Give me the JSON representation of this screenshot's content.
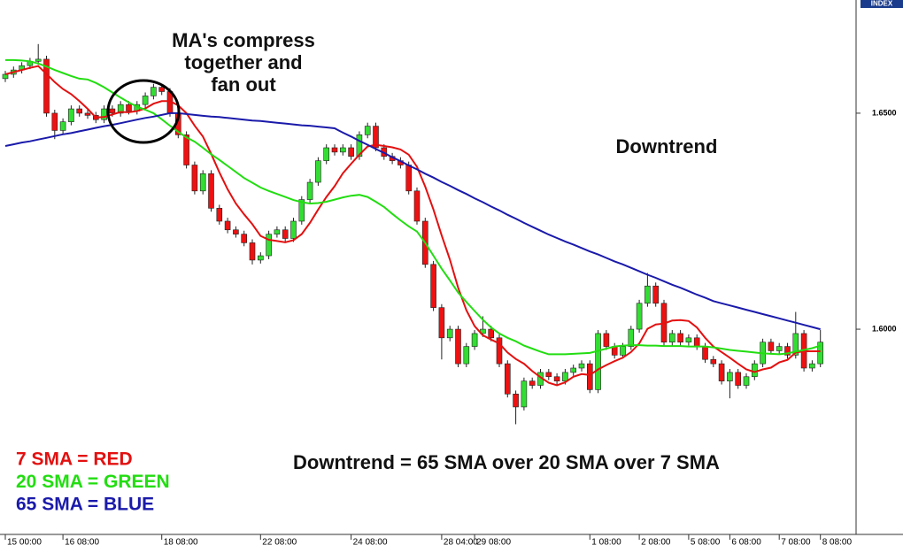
{
  "chart_data": {
    "type": "candlestick",
    "axis_badge": "INDEX",
    "annotations": [
      [
        "MA's compress",
        "together and",
        "fan out"
      ],
      "Downtrend",
      "Downtrend = 65 SMA over 20 SMA over 7 SMA"
    ],
    "categories": [
      "15 00:00",
      null,
      null,
      null,
      null,
      null,
      null,
      "16 08:00",
      null,
      null,
      null,
      null,
      null,
      null,
      null,
      null,
      null,
      null,
      null,
      "18 08:00",
      null,
      null,
      null,
      null,
      null,
      null,
      null,
      null,
      null,
      null,
      null,
      "22 08:00",
      null,
      null,
      null,
      null,
      null,
      null,
      null,
      null,
      null,
      null,
      "24 08:00",
      null,
      null,
      null,
      null,
      null,
      null,
      null,
      null,
      null,
      null,
      "28 04:00",
      null,
      null,
      null,
      "29 08:00",
      null,
      null,
      null,
      null,
      null,
      null,
      null,
      null,
      null,
      null,
      null,
      null,
      null,
      "1 08:00",
      null,
      null,
      null,
      null,
      null,
      "2 08:00",
      null,
      null,
      null,
      null,
      null,
      "5 08:00",
      null,
      null,
      null,
      null,
      "6 08:00",
      null,
      null,
      null,
      null,
      null,
      "7 08:00",
      null,
      null,
      null,
      null,
      "8 08:00"
    ],
    "open": [
      1.658,
      1.659,
      1.66,
      1.661,
      1.662,
      1.6625,
      1.65,
      1.646,
      1.648,
      1.651,
      1.65,
      1.6495,
      1.6485,
      1.651,
      1.65,
      1.652,
      1.6505,
      1.652,
      1.654,
      1.656,
      1.655,
      1.65,
      1.645,
      1.638,
      1.632,
      1.636,
      1.628,
      1.625,
      1.623,
      1.622,
      1.62,
      1.616,
      1.617,
      1.622,
      1.623,
      1.621,
      1.625,
      1.63,
      1.634,
      1.639,
      1.642,
      1.641,
      1.642,
      1.64,
      1.645,
      1.647,
      1.642,
      1.64,
      1.639,
      1.638,
      1.632,
      1.625,
      1.615,
      1.605,
      1.598,
      1.6,
      1.592,
      1.596,
      1.599,
      1.6,
      1.598,
      1.592,
      1.585,
      1.582,
      1.588,
      1.587,
      1.59,
      1.589,
      1.588,
      1.59,
      1.591,
      1.592,
      1.586,
      1.599,
      1.596,
      1.594,
      1.596,
      1.6,
      1.606,
      1.61,
      1.606,
      1.597,
      1.599,
      1.597,
      1.598,
      1.596,
      1.593,
      1.592,
      1.588,
      1.59,
      1.587,
      1.589,
      1.592,
      1.597,
      1.595,
      1.596,
      1.594,
      1.599,
      1.591,
      1.592
    ],
    "high": [
      1.6598,
      1.6608,
      1.6618,
      1.6628,
      1.666,
      1.6633,
      1.6508,
      1.6488,
      1.6518,
      1.6518,
      1.6508,
      1.6503,
      1.6518,
      1.6518,
      1.6528,
      1.6528,
      1.6528,
      1.6548,
      1.6568,
      1.6568,
      1.6558,
      1.6508,
      1.6458,
      1.6388,
      1.6368,
      1.6368,
      1.6288,
      1.6258,
      1.6238,
      1.6228,
      1.6208,
      1.6178,
      1.6228,
      1.6238,
      1.6238,
      1.6258,
      1.6308,
      1.6348,
      1.6398,
      1.6428,
      1.6428,
      1.6428,
      1.6428,
      1.6458,
      1.6478,
      1.6478,
      1.6428,
      1.6408,
      1.6398,
      1.6388,
      1.6328,
      1.6258,
      1.6158,
      1.6058,
      1.6008,
      1.6008,
      1.5968,
      1.5998,
      1.603,
      1.6008,
      1.5988,
      1.5928,
      1.5858,
      1.5888,
      1.5888,
      1.5908,
      1.5908,
      1.5898,
      1.5908,
      1.5918,
      1.5928,
      1.5928,
      1.5998,
      1.5998,
      1.5968,
      1.5968,
      1.6008,
      1.6068,
      1.613,
      1.6108,
      1.6068,
      1.5998,
      1.5998,
      1.5988,
      1.5988,
      1.5968,
      1.5938,
      1.5928,
      1.5908,
      1.5908,
      1.5898,
      1.5928,
      1.5978,
      1.5978,
      1.5968,
      1.5968,
      1.604,
      1.5998,
      1.5928,
      1.5998
    ],
    "low": [
      1.6572,
      1.6582,
      1.6592,
      1.6602,
      1.6612,
      1.6492,
      1.644,
      1.6452,
      1.6472,
      1.6492,
      1.6487,
      1.6477,
      1.6477,
      1.6492,
      1.6492,
      1.6497,
      1.6497,
      1.6512,
      1.6532,
      1.6542,
      1.6492,
      1.6442,
      1.6372,
      1.6312,
      1.6312,
      1.6272,
      1.6242,
      1.6222,
      1.6212,
      1.6192,
      1.615,
      1.6152,
      1.6162,
      1.6212,
      1.6202,
      1.6202,
      1.6242,
      1.6292,
      1.6332,
      1.6382,
      1.6402,
      1.6402,
      1.6392,
      1.6392,
      1.6442,
      1.6412,
      1.6392,
      1.6382,
      1.6372,
      1.6312,
      1.6242,
      1.6142,
      1.6042,
      1.593,
      1.5972,
      1.5912,
      1.5912,
      1.5952,
      1.5982,
      1.5972,
      1.5912,
      1.5842,
      1.578,
      1.5812,
      1.5862,
      1.5862,
      1.5882,
      1.5872,
      1.5872,
      1.5892,
      1.5902,
      1.5852,
      1.5852,
      1.5952,
      1.5932,
      1.5932,
      1.5952,
      1.5992,
      1.6052,
      1.6052,
      1.5962,
      1.5962,
      1.5962,
      1.5962,
      1.5952,
      1.5922,
      1.5912,
      1.5872,
      1.584,
      1.5862,
      1.5862,
      1.5882,
      1.5912,
      1.5942,
      1.5942,
      1.5932,
      1.5932,
      1.5902,
      1.5902,
      1.5912
    ],
    "close": [
      1.659,
      1.66,
      1.661,
      1.662,
      1.6625,
      1.65,
      1.646,
      1.648,
      1.651,
      1.65,
      1.6495,
      1.6485,
      1.651,
      1.65,
      1.652,
      1.6505,
      1.652,
      1.654,
      1.656,
      1.655,
      1.65,
      1.645,
      1.638,
      1.632,
      1.636,
      1.628,
      1.625,
      1.623,
      1.622,
      1.62,
      1.616,
      1.617,
      1.622,
      1.623,
      1.621,
      1.625,
      1.63,
      1.634,
      1.639,
      1.642,
      1.641,
      1.642,
      1.64,
      1.645,
      1.647,
      1.642,
      1.64,
      1.639,
      1.638,
      1.632,
      1.625,
      1.615,
      1.605,
      1.598,
      1.6,
      1.592,
      1.596,
      1.599,
      1.6,
      1.598,
      1.592,
      1.585,
      1.582,
      1.588,
      1.587,
      1.59,
      1.589,
      1.588,
      1.59,
      1.591,
      1.592,
      1.586,
      1.599,
      1.596,
      1.594,
      1.596,
      1.6,
      1.606,
      1.61,
      1.606,
      1.597,
      1.599,
      1.597,
      1.598,
      1.596,
      1.593,
      1.592,
      1.588,
      1.59,
      1.587,
      1.589,
      1.592,
      1.597,
      1.595,
      1.596,
      1.594,
      1.599,
      1.591,
      1.592,
      1.597
    ],
    "up_color": "#33dd33",
    "down_color": "#ee1111",
    "series": [
      {
        "name": "7 SMA = RED",
        "color": "#e31010",
        "values": [
          1.659,
          1.6595,
          1.66,
          1.6605,
          1.6609,
          1.6591,
          1.6572,
          1.6556,
          1.6544,
          1.6528,
          1.651,
          1.649,
          1.6491,
          1.6497,
          1.6503,
          1.6502,
          1.6505,
          1.6511,
          1.6522,
          1.6528,
          1.6528,
          1.6518,
          1.65,
          1.6471,
          1.6446,
          1.6406,
          1.6363,
          1.6324,
          1.6291,
          1.6266,
          1.6243,
          1.6216,
          1.6207,
          1.6204,
          1.6201,
          1.6206,
          1.622,
          1.6246,
          1.6277,
          1.6306,
          1.6331,
          1.6361,
          1.6383,
          1.6404,
          1.6423,
          1.6427,
          1.6424,
          1.6421,
          1.6416,
          1.6404,
          1.6376,
          1.633,
          1.6277,
          1.6217,
          1.6161,
          1.6096,
          1.6044,
          1.6007,
          1.5986,
          1.5976,
          1.5967,
          1.5946,
          1.5931,
          1.592,
          1.5903,
          1.5889,
          1.5876,
          1.587,
          1.5877,
          1.589,
          1.5896,
          1.5894,
          1.5907,
          1.5917,
          1.5926,
          1.5934,
          1.5947,
          1.5967,
          1.6001,
          1.6011,
          1.6013,
          1.602,
          1.6021,
          1.6019,
          1.6004,
          1.598,
          1.596,
          1.5947,
          1.5934,
          1.592,
          1.5907,
          1.5901,
          1.5907,
          1.5911,
          1.5923,
          1.5929,
          1.5946,
          1.5949,
          1.5949,
          1.5949
        ]
      },
      {
        "name": "20 SMA = GREEN",
        "color": "#22dd11",
        "values": [
          1.6623,
          1.6623,
          1.6622,
          1.662,
          1.6615,
          1.6608,
          1.66,
          1.6593,
          1.6586,
          1.658,
          1.6578,
          1.657,
          1.656,
          1.6548,
          1.6536,
          1.6525,
          1.6515,
          1.6508,
          1.65,
          1.6486,
          1.6471,
          1.6457,
          1.6444,
          1.6434,
          1.642,
          1.6405,
          1.6392,
          1.6378,
          1.6364,
          1.635,
          1.6339,
          1.6328,
          1.632,
          1.6313,
          1.6306,
          1.6299,
          1.6294,
          1.6291,
          1.6292,
          1.6295,
          1.63,
          1.6305,
          1.6309,
          1.6311,
          1.6306,
          1.6295,
          1.6283,
          1.6267,
          1.6252,
          1.6238,
          1.6226,
          1.62,
          1.617,
          1.614,
          1.6113,
          1.6085,
          1.6063,
          1.6042,
          1.6022,
          1.6004,
          1.599,
          1.598,
          1.5972,
          1.5962,
          1.5955,
          1.5948,
          1.5942,
          1.5942,
          1.5942,
          1.5943,
          1.5944,
          1.5945,
          1.595,
          1.5955,
          1.596,
          1.5962,
          1.5963,
          1.5963,
          1.5962,
          1.5962,
          1.5961,
          1.5961,
          1.5961,
          1.596,
          1.596,
          1.596,
          1.5958,
          1.5955,
          1.5952,
          1.595,
          1.5948,
          1.5946,
          1.5944,
          1.5943,
          1.5942,
          1.5944,
          1.5948,
          1.5952,
          1.5956,
          1.5962
        ]
      },
      {
        "name": "65 SMA = BLUE",
        "color": "#1a1aaa",
        "values": [
          1.6424,
          1.6428,
          1.6432,
          1.6435,
          1.6439,
          1.6443,
          1.6447,
          1.6451,
          1.6454,
          1.6458,
          1.6462,
          1.6466,
          1.647,
          1.6473,
          1.6477,
          1.6481,
          1.6485,
          1.6489,
          1.6492,
          1.6496,
          1.65,
          1.65,
          1.6498,
          1.6496,
          1.6494,
          1.6492,
          1.6491,
          1.6489,
          1.6487,
          1.6485,
          1.6483,
          1.6482,
          1.648,
          1.6478,
          1.6476,
          1.6474,
          1.6472,
          1.6471,
          1.6469,
          1.6467,
          1.6465,
          1.6455,
          1.6446,
          1.6436,
          1.6427,
          1.6417,
          1.6408,
          1.6398,
          1.6389,
          1.6379,
          1.637,
          1.636,
          1.6351,
          1.6341,
          1.6332,
          1.6322,
          1.6313,
          1.6303,
          1.6294,
          1.6284,
          1.6275,
          1.6265,
          1.6256,
          1.6246,
          1.6237,
          1.6228,
          1.6219,
          1.6211,
          1.6203,
          1.6196,
          1.6188,
          1.618,
          1.6173,
          1.6165,
          1.6157,
          1.615,
          1.6142,
          1.6134,
          1.6126,
          1.6119,
          1.6111,
          1.6103,
          1.6096,
          1.6088,
          1.608,
          1.6073,
          1.6065,
          1.606,
          1.6055,
          1.605,
          1.6045,
          1.604,
          1.6035,
          1.603,
          1.6025,
          1.602,
          1.6015,
          1.601,
          1.6005,
          1.6
        ]
      }
    ],
    "ylim": [
      1.5527,
      1.6762
    ],
    "yticks": [
      {
        "value": 1.65,
        "label": "1.6500"
      },
      {
        "value": 1.6,
        "label": "1.6000"
      }
    ],
    "legend": "lower-left",
    "grid": false
  }
}
